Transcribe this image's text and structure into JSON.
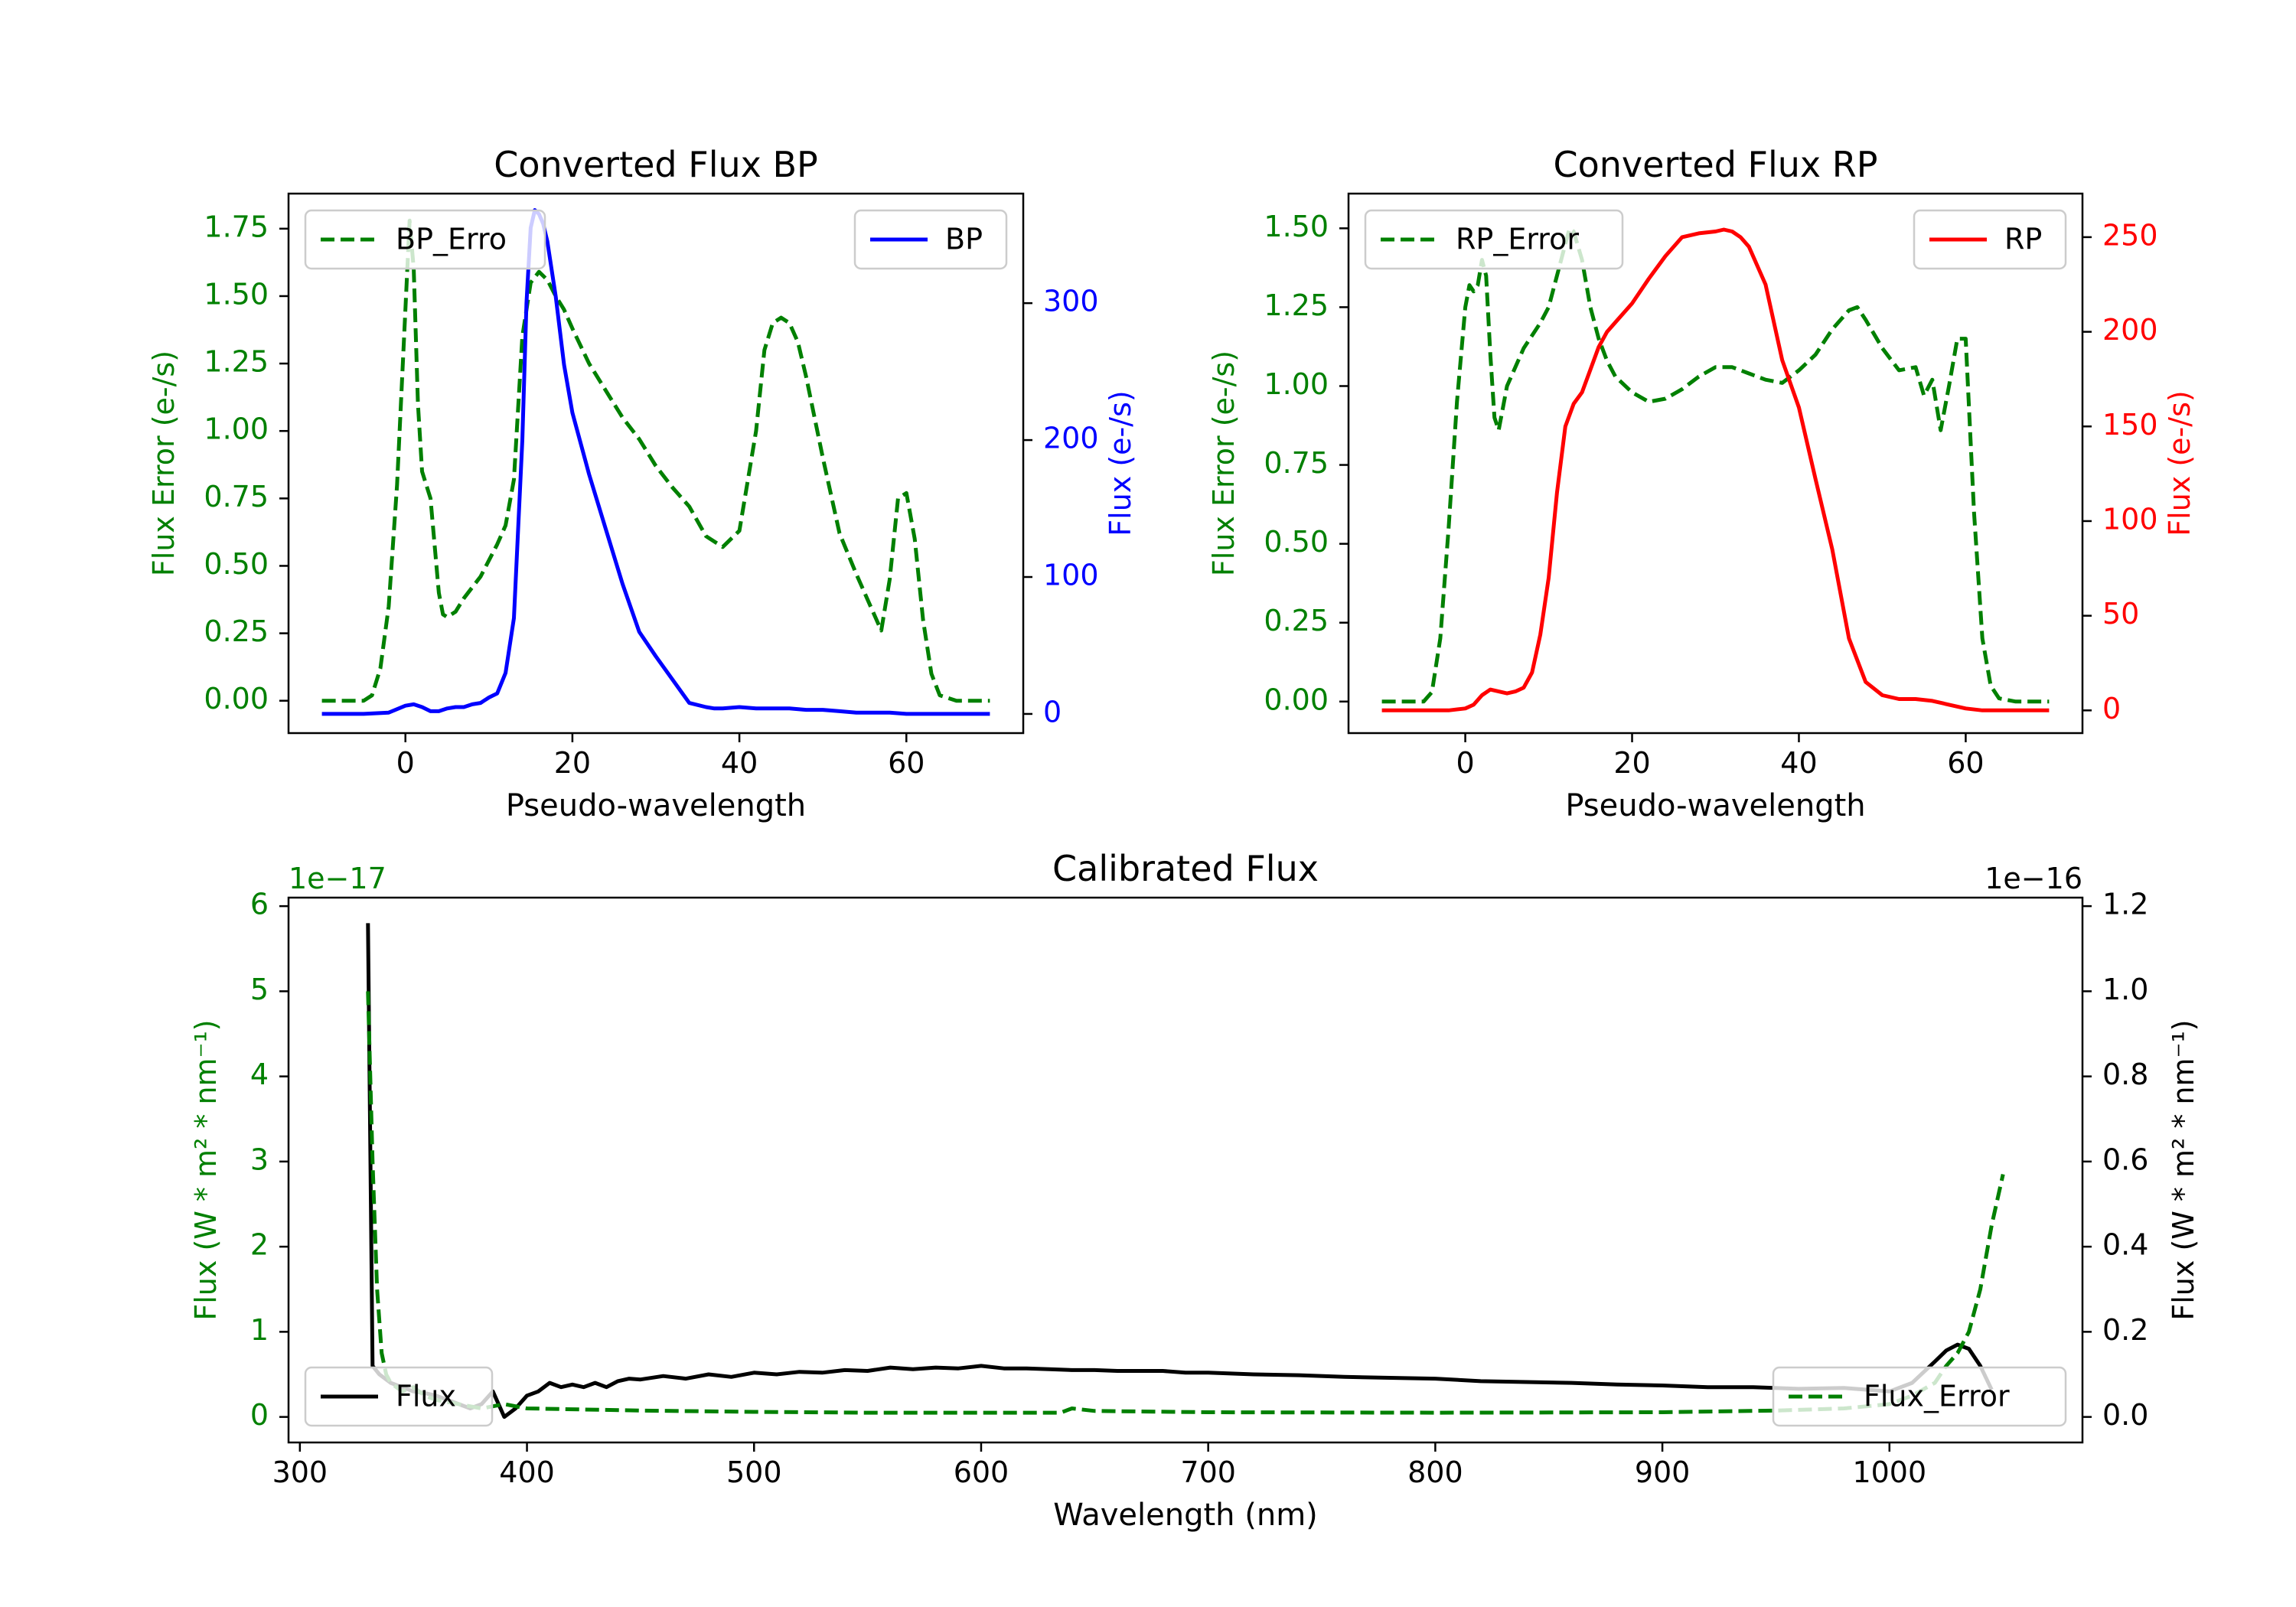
{
  "colors": {
    "green": "#008000",
    "blue": "#0000ff",
    "red": "#ff0000",
    "black": "#000000"
  },
  "chart_data": [
    {
      "id": "bp",
      "type": "line",
      "title": "Converted Flux BP",
      "xlabel": "Pseudo-wavelength",
      "ylabel_left": "Flux Error (e-/s)",
      "ylabel_right": "Flux (e-/s)",
      "xlim": [
        -14,
        74
      ],
      "ylim_left": [
        -0.12,
        1.88
      ],
      "ylim_right": [
        -14,
        380
      ],
      "xticks": [
        0,
        20,
        40,
        60
      ],
      "yticks_left": [
        0.0,
        0.25,
        0.5,
        0.75,
        1.0,
        1.25,
        1.5,
        1.75
      ],
      "ytick_labels_left": [
        "0.00",
        "0.25",
        "0.50",
        "0.75",
        "1.00",
        "1.25",
        "1.50",
        "1.75"
      ],
      "yticks_right": [
        0,
        100,
        200,
        300
      ],
      "series": [
        {
          "name": "BP_Error",
          "axis": "left",
          "style": "dashed",
          "color": "#008000",
          "x": [
            -10,
            -5,
            -4,
            -3,
            -2,
            -1,
            0,
            0.5,
            1,
            1.5,
            2,
            3,
            4,
            4.5,
            5,
            6,
            7,
            8,
            9,
            10,
            11,
            12,
            13,
            14,
            15,
            16,
            17,
            18,
            19,
            20,
            22,
            24,
            26,
            28,
            30,
            32,
            34,
            36,
            38,
            40,
            42,
            43,
            44,
            45,
            46,
            47,
            48,
            50,
            52,
            54,
            56,
            57,
            58,
            59,
            60,
            61,
            62,
            63,
            64,
            66,
            70
          ],
          "y": [
            0,
            0,
            0.02,
            0.12,
            0.35,
            0.8,
            1.45,
            1.78,
            1.6,
            1.1,
            0.85,
            0.75,
            0.4,
            0.32,
            0.31,
            0.33,
            0.38,
            0.42,
            0.46,
            0.52,
            0.58,
            0.65,
            0.82,
            1.35,
            1.55,
            1.59,
            1.56,
            1.5,
            1.45,
            1.38,
            1.25,
            1.15,
            1.05,
            0.97,
            0.87,
            0.79,
            0.72,
            0.61,
            0.57,
            0.63,
            1.0,
            1.3,
            1.4,
            1.42,
            1.4,
            1.33,
            1.2,
            0.9,
            0.62,
            0.47,
            0.33,
            0.26,
            0.45,
            0.75,
            0.77,
            0.6,
            0.3,
            0.1,
            0.02,
            0,
            0
          ]
        },
        {
          "name": "BP",
          "axis": "right",
          "style": "solid",
          "color": "#0000ff",
          "x": [
            -10,
            -5,
            -2,
            0,
            1,
            2,
            3,
            4,
            5,
            6,
            7,
            8,
            9,
            10,
            11,
            12,
            13,
            14,
            14.5,
            15,
            15.5,
            16,
            16.5,
            17,
            18,
            19,
            20,
            22,
            24,
            26,
            28,
            30,
            32,
            34,
            36,
            37,
            38,
            40,
            42,
            44,
            46,
            48,
            50,
            52,
            54,
            56,
            58,
            60,
            64,
            70
          ],
          "y": [
            0,
            0,
            1,
            6,
            7,
            5,
            2,
            2,
            4,
            5,
            5,
            7,
            8,
            12,
            15,
            30,
            70,
            200,
            300,
            355,
            368,
            365,
            358,
            345,
            305,
            255,
            220,
            175,
            135,
            95,
            60,
            42,
            25,
            8,
            5,
            4,
            4,
            5,
            4,
            4,
            4,
            3,
            3,
            2,
            1,
            1,
            1,
            0,
            0,
            0
          ]
        }
      ],
      "legend": [
        {
          "label": "BP_Erro",
          "position": "top-left"
        },
        {
          "label": "BP",
          "position": "top-right"
        }
      ]
    },
    {
      "id": "rp",
      "type": "line",
      "title": "Converted Flux RP",
      "xlabel": "Pseudo-wavelength",
      "ylabel_left": "Flux Error (e-/s)",
      "ylabel_right": "Flux (e-/s)",
      "xlim": [
        -14,
        74
      ],
      "ylim_left": [
        -0.1,
        1.61
      ],
      "ylim_right": [
        -12,
        273
      ],
      "xticks": [
        0,
        20,
        40,
        60
      ],
      "yticks_left": [
        0.0,
        0.25,
        0.5,
        0.75,
        1.0,
        1.25,
        1.5
      ],
      "ytick_labels_left": [
        "0.00",
        "0.25",
        "0.50",
        "0.75",
        "1.00",
        "1.25",
        "1.50"
      ],
      "yticks_right": [
        0,
        50,
        100,
        150,
        200,
        250
      ],
      "series": [
        {
          "name": "RP_Error",
          "axis": "left",
          "style": "dashed",
          "color": "#008000",
          "x": [
            -10,
            -5,
            -4,
            -3,
            -2,
            -1,
            0,
            0.5,
            1,
            1.5,
            2,
            2.5,
            3,
            3.5,
            4,
            5,
            6,
            7,
            8,
            9,
            10,
            11,
            12,
            12.5,
            13,
            14,
            15,
            16,
            17,
            18,
            20,
            22,
            24,
            26,
            28,
            30,
            32,
            34,
            36,
            38,
            40,
            42,
            44,
            46,
            47,
            48,
            50,
            52,
            54,
            55,
            56,
            57,
            58,
            59,
            60,
            61,
            62,
            63,
            64,
            66,
            70
          ],
          "y": [
            0,
            0,
            0.03,
            0.2,
            0.55,
            0.95,
            1.25,
            1.32,
            1.3,
            1.32,
            1.4,
            1.35,
            1.1,
            0.9,
            0.86,
            1.0,
            1.06,
            1.12,
            1.16,
            1.2,
            1.25,
            1.35,
            1.45,
            1.5,
            1.49,
            1.4,
            1.25,
            1.15,
            1.08,
            1.03,
            0.98,
            0.95,
            0.96,
            0.99,
            1.03,
            1.06,
            1.06,
            1.04,
            1.02,
            1.01,
            1.05,
            1.1,
            1.18,
            1.24,
            1.25,
            1.21,
            1.12,
            1.05,
            1.06,
            0.97,
            1.02,
            0.86,
            1.0,
            1.15,
            1.15,
            0.6,
            0.2,
            0.05,
            0.01,
            0,
            0
          ]
        },
        {
          "name": "RP",
          "axis": "right",
          "style": "solid",
          "color": "#ff0000",
          "x": [
            -10,
            -5,
            -2,
            0,
            1,
            2,
            3,
            4,
            5,
            6,
            7,
            8,
            9,
            10,
            11,
            12,
            13,
            14,
            15,
            16,
            17,
            18,
            20,
            22,
            24,
            26,
            28,
            30,
            31,
            32,
            33,
            34,
            36,
            38,
            40,
            42,
            44,
            46,
            48,
            50,
            52,
            54,
            56,
            58,
            60,
            62,
            64,
            70
          ],
          "y": [
            0,
            0,
            0,
            1,
            3,
            8,
            11,
            10,
            9,
            10,
            12,
            20,
            40,
            70,
            115,
            150,
            162,
            168,
            180,
            192,
            200,
            205,
            215,
            228,
            240,
            250,
            252,
            253,
            254,
            253,
            250,
            245,
            225,
            185,
            160,
            122,
            85,
            38,
            15,
            8,
            6,
            6,
            5,
            3,
            1,
            0,
            0,
            0
          ]
        }
      ],
      "legend": [
        {
          "label": "RP_Error",
          "position": "top-left"
        },
        {
          "label": "RP",
          "position": "top-right"
        }
      ]
    },
    {
      "id": "cal",
      "type": "line",
      "title": "Calibrated Flux",
      "xlabel": "Wavelength (nm)",
      "ylabel_left": "Flux (W * m² * nm⁻¹)",
      "ylabel_right": "Flux (W * m² * nm⁻¹)",
      "offset_left": "1e−17",
      "offset_right": "1e−16",
      "xlim": [
        295,
        1085
      ],
      "ylim_left": [
        -0.3,
        6.1
      ],
      "ylim_right": [
        -0.06,
        1.22
      ],
      "xticks": [
        300,
        400,
        500,
        600,
        700,
        800,
        900,
        1000
      ],
      "yticks_left": [
        0,
        1,
        2,
        3,
        4,
        5,
        6
      ],
      "yticks_right": [
        0.0,
        0.2,
        0.4,
        0.6,
        0.8,
        1.0,
        1.2
      ],
      "ytick_labels_right": [
        "0.0",
        "0.2",
        "0.4",
        "0.6",
        "0.8",
        "1.0",
        "1.2"
      ],
      "series": [
        {
          "name": "Flux",
          "axis": "left",
          "style": "solid",
          "color": "#000000",
          "note": "legend label 'Flux' is attached to the black solid line",
          "x": [
            330,
            332,
            335,
            340,
            345,
            350,
            355,
            360,
            365,
            370,
            375,
            380,
            385,
            390,
            395,
            400,
            405,
            410,
            415,
            420,
            425,
            430,
            435,
            440,
            445,
            450,
            460,
            470,
            480,
            490,
            500,
            510,
            520,
            530,
            540,
            550,
            560,
            570,
            580,
            590,
            600,
            610,
            620,
            630,
            640,
            650,
            660,
            670,
            680,
            690,
            700,
            720,
            740,
            760,
            780,
            800,
            820,
            840,
            860,
            880,
            900,
            920,
            940,
            960,
            980,
            1000,
            1010,
            1020,
            1025,
            1030,
            1035,
            1040,
            1045
          ],
          "y": [
            5.8,
            0.6,
            0.5,
            0.4,
            0.35,
            0.3,
            0.28,
            0.25,
            0.2,
            0.15,
            0.1,
            0.15,
            0.3,
            0.0,
            0.1,
            0.25,
            0.3,
            0.4,
            0.35,
            0.38,
            0.35,
            0.4,
            0.35,
            0.42,
            0.45,
            0.44,
            0.48,
            0.45,
            0.5,
            0.47,
            0.52,
            0.5,
            0.53,
            0.52,
            0.55,
            0.54,
            0.58,
            0.56,
            0.58,
            0.57,
            0.6,
            0.57,
            0.57,
            0.56,
            0.55,
            0.55,
            0.54,
            0.54,
            0.54,
            0.52,
            0.52,
            0.5,
            0.49,
            0.47,
            0.46,
            0.45,
            0.42,
            0.41,
            0.4,
            0.38,
            0.37,
            0.35,
            0.35,
            0.33,
            0.34,
            0.3,
            0.4,
            0.65,
            0.78,
            0.85,
            0.8,
            0.6,
            0.32
          ]
        },
        {
          "name": "Flux_Error",
          "axis": "right",
          "style": "dashed",
          "color": "#008000",
          "note": "legend label 'Flux_Error' is attached to the green dashed line",
          "x": [
            330,
            332,
            334,
            336,
            338,
            340,
            345,
            350,
            355,
            360,
            370,
            380,
            390,
            400,
            450,
            500,
            550,
            600,
            635,
            640,
            650,
            700,
            800,
            900,
            950,
            980,
            1000,
            1010,
            1020,
            1025,
            1030,
            1035,
            1040,
            1045,
            1050
          ],
          "y": [
            1.0,
            0.6,
            0.3,
            0.15,
            0.1,
            0.08,
            0.06,
            0.07,
            0.05,
            0.04,
            0.03,
            0.02,
            0.03,
            0.02,
            0.015,
            0.012,
            0.01,
            0.01,
            0.01,
            0.02,
            0.014,
            0.011,
            0.01,
            0.011,
            0.015,
            0.02,
            0.03,
            0.05,
            0.08,
            0.12,
            0.15,
            0.2,
            0.3,
            0.45,
            0.57
          ]
        }
      ],
      "legend": [
        {
          "label": "Flux",
          "position": "bottom-left"
        },
        {
          "label": "Flux_Error",
          "position": "bottom-right"
        }
      ]
    }
  ]
}
